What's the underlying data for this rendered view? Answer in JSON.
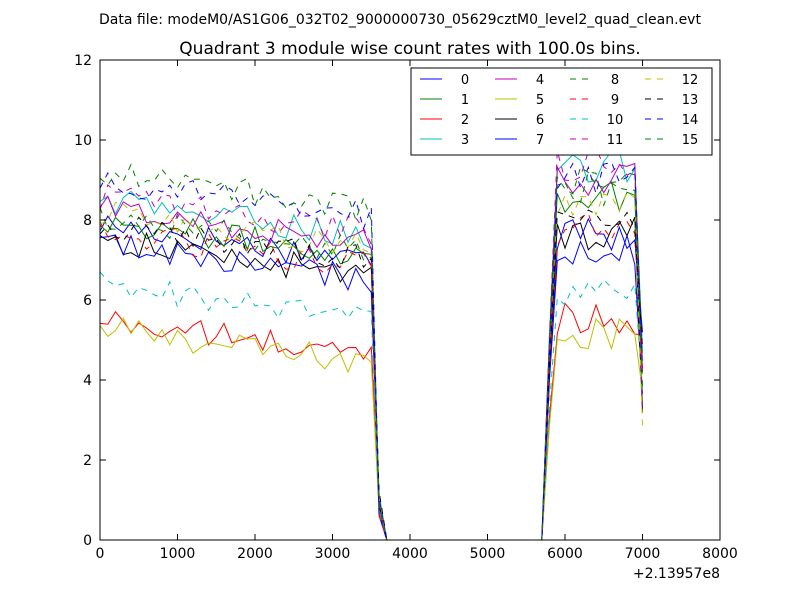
{
  "chart_data": {
    "type": "line",
    "suptitle": "Data file: modeM0/AS1G06_032T02_9000000730_05629cztM0_level2_quad_clean.evt",
    "title": "Quadrant 3 module wise count rates with 100.0s bins.",
    "xlabel": "",
    "ylabel": "",
    "x_offset_label": "+2.13957e8",
    "xlim": [
      0,
      8000
    ],
    "ylim": [
      0,
      12
    ],
    "xticks": [
      0,
      1000,
      2000,
      3000,
      4000,
      5000,
      6000,
      7000,
      8000
    ],
    "yticks": [
      0,
      2,
      4,
      6,
      8,
      10,
      12
    ],
    "grid": false,
    "legend_placement": "top-right",
    "x": [
      0,
      100,
      200,
      300,
      400,
      500,
      600,
      700,
      800,
      900,
      1000,
      1100,
      1200,
      1300,
      1400,
      1500,
      1600,
      1700,
      1800,
      1900,
      2000,
      2100,
      2200,
      2300,
      2400,
      2500,
      2600,
      2700,
      2800,
      2900,
      3000,
      3100,
      3200,
      3300,
      3400,
      3500,
      3600,
      3700,
      3800,
      3900,
      4000,
      4100,
      4200,
      4300,
      4400,
      4500,
      4600,
      4700,
      4800,
      4900,
      5000,
      5100,
      5200,
      5300,
      5400,
      5500,
      5600,
      5700,
      5800,
      5900,
      6000,
      6100,
      6200,
      6300,
      6400,
      6500,
      6600,
      6700,
      6800,
      6900,
      7000
    ],
    "series": [
      {
        "name": "0",
        "color": "#0000ff",
        "dash": "solid",
        "base1": 7.0,
        "base2": 7.3
      },
      {
        "name": "1",
        "color": "#008000",
        "dash": "solid",
        "base1": 7.1,
        "base2": 8.6
      },
      {
        "name": "2",
        "color": "#ff0000",
        "dash": "solid",
        "base1": 4.6,
        "base2": 5.6
      },
      {
        "name": "3",
        "color": "#00bfbf",
        "dash": "solid",
        "base1": 7.6,
        "base2": 9.3
      },
      {
        "name": "4",
        "color": "#bf00bf",
        "dash": "solid",
        "base1": 7.4,
        "base2": 9.0
      },
      {
        "name": "5",
        "color": "#bfbf00",
        "dash": "solid",
        "base1": 4.4,
        "base2": 5.2
      },
      {
        "name": "6",
        "color": "#000000",
        "dash": "solid",
        "base1": 6.6,
        "base2": 7.7
      },
      {
        "name": "7",
        "color": "#0000ff",
        "dash": "solid",
        "base1": 6.5,
        "base2": 7.6
      },
      {
        "name": "8",
        "color": "#008000",
        "dash": "dashed",
        "base1": 7.2,
        "base2": 8.8
      },
      {
        "name": "9",
        "color": "#ff0000",
        "dash": "dashed",
        "base1": 6.8,
        "base2": 7.8
      },
      {
        "name": "10",
        "color": "#00bfbf",
        "dash": "dashed",
        "base1": 5.5,
        "base2": 6.1
      },
      {
        "name": "11",
        "color": "#bf00bf",
        "dash": "dashed",
        "base1": 7.7,
        "base2": 9.4
      },
      {
        "name": "12",
        "color": "#bfbf00",
        "dash": "dashed",
        "base1": 7.3,
        "base2": 8.3
      },
      {
        "name": "13",
        "color": "#000000",
        "dash": "dashed",
        "base1": 7.0,
        "base2": 8.0
      },
      {
        "name": "14",
        "color": "#0000ff",
        "dash": "dashed",
        "base1": 8.1,
        "base2": 9.1
      },
      {
        "name": "15",
        "color": "#008000",
        "dash": "dashed",
        "base1": 8.3,
        "base2": 9.0
      }
    ]
  }
}
